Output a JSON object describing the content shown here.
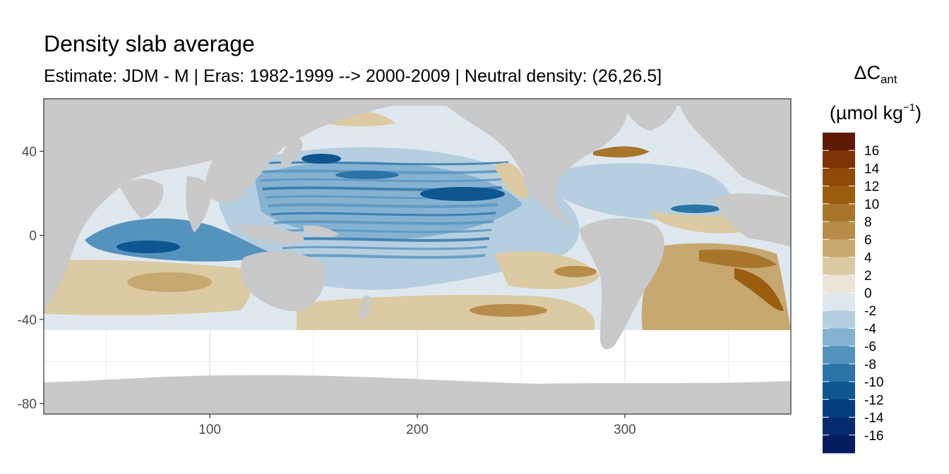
{
  "chart_data": {
    "type": "heatmap",
    "title": "Density slab average",
    "subtitle": "Estimate: JDM - M | Eras: 1982-1999 --> 2000-2009 | Neutral density: (26,26.5]",
    "x_ticks": [
      100,
      200,
      300
    ],
    "y_ticks": [
      40,
      0,
      -40,
      -80
    ],
    "x_range": [
      20,
      380
    ],
    "y_range": [
      -85,
      65
    ],
    "legend": {
      "title_main": "ΔC",
      "title_sub": "ant",
      "unit_prefix": "(µmol kg",
      "unit_sup": "−1",
      "unit_suffix": ")",
      "labels": [
        "16",
        "14",
        "12",
        "10",
        "8",
        "6",
        "4",
        "2",
        "0",
        "-2",
        "-4",
        "-6",
        "-8",
        "-10",
        "-12",
        "-14",
        "-16"
      ],
      "colors": [
        "#5e1a05",
        "#7d3305",
        "#8f4a08",
        "#9b5d0f",
        "#a8762b",
        "#b88d4a",
        "#c7a871",
        "#dccaa3",
        "#ece4d6",
        "#dfe8ee",
        "#b6cfe0",
        "#86b2d1",
        "#5593bf",
        "#2c74a8",
        "#0e5690",
        "#063d80",
        "#052a6e",
        "#041c5e"
      ]
    },
    "colors": {
      "land": "#c9c9c9",
      "grid": "#ebebeb",
      "panel_border": "#333333"
    }
  }
}
